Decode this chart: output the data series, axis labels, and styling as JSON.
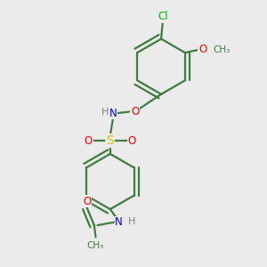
{
  "background_color": "#ebebeb",
  "atom_colors": {
    "C": "#3d7d3d",
    "N": "#0000ff",
    "O": "#ff0000",
    "S": "#cccc00",
    "Cl": "#00bb00",
    "H": "#808080"
  },
  "bond_color": "#3d7d3d",
  "bond_lw": 1.6
}
